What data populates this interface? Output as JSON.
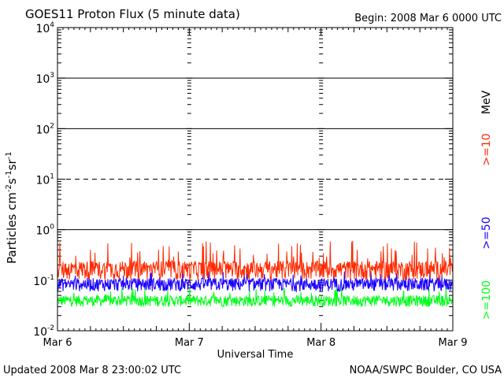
{
  "chart_data": {
    "type": "line",
    "title": "GOES11 Proton Flux (5 minute data)",
    "begin_label": "Begin: 2008 Mar 6 0000 UTC",
    "xlabel": "Universal Time",
    "ylabel_parts": {
      "base": "Particles cm",
      "e1": "-2",
      "s": "s",
      "e2": "-1",
      "sr": "sr",
      "e3": "-1"
    },
    "x_ticks": [
      "Mar 6",
      "Mar 7",
      "Mar 8",
      "Mar 9"
    ],
    "xlim_days": [
      0,
      3
    ],
    "y_scale": "log",
    "ylim": [
      0.01,
      10000
    ],
    "y_ticks": [
      {
        "base": "10",
        "exp": "-2",
        "value": 0.01
      },
      {
        "base": "10",
        "exp": "-1",
        "value": 0.1
      },
      {
        "base": "10",
        "exp": "0",
        "value": 1
      },
      {
        "base": "10",
        "exp": "1",
        "value": 10
      },
      {
        "base": "10",
        "exp": "2",
        "value": 100
      },
      {
        "base": "10",
        "exp": "3",
        "value": 1000
      },
      {
        "base": "10",
        "exp": "4",
        "value": 10000
      }
    ],
    "reference_lines": [
      {
        "value": 1,
        "style": "solid"
      },
      {
        "value": 10,
        "style": "dashed"
      },
      {
        "value": 100,
        "style": "solid"
      },
      {
        "value": 1000,
        "style": "solid"
      }
    ],
    "legend_unit": "MeV",
    "series": [
      {
        "name": ">=10",
        "color": "#ff2a00",
        "baseline": 0.17,
        "spread": 0.14,
        "spike_max": 0.6
      },
      {
        "name": ">=50",
        "color": "#1a00ff",
        "baseline": 0.085,
        "spread": 0.05,
        "spike_max": 0.16
      },
      {
        "name": ">=100",
        "color": "#00ff1a",
        "baseline": 0.04,
        "spread": 0.02,
        "spike_max": 0.07
      }
    ]
  },
  "footer": {
    "updated": "Updated 2008 Mar  8 23:00:02 UTC",
    "credit": "NOAA/SWPC Boulder, CO USA"
  }
}
